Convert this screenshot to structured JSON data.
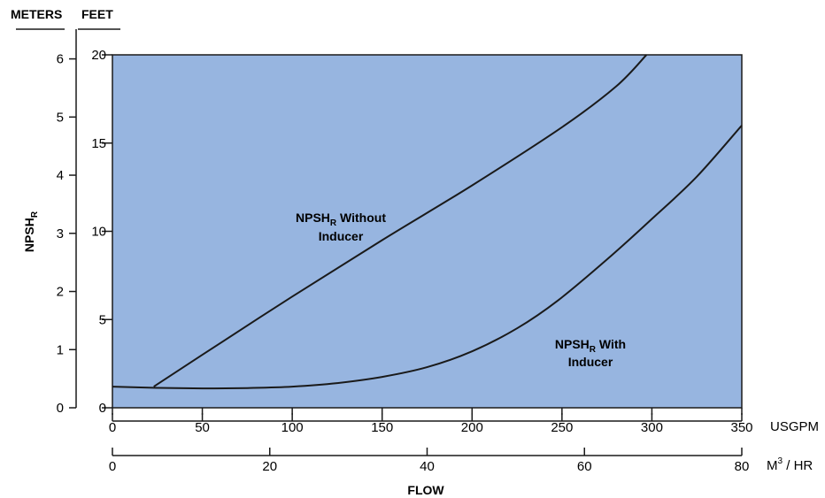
{
  "chart_data": {
    "type": "line",
    "plot_background_color": "#97b5e0",
    "line_color": "#1a1a1a",
    "left_axis": {
      "header": "METERS",
      "title": "NPSH",
      "title_subscript": "R",
      "range": [
        0,
        6.1
      ],
      "ticks": [
        0,
        1,
        2,
        3,
        4,
        5,
        6
      ]
    },
    "right_axis": {
      "header": "FEET",
      "range": [
        0,
        20
      ],
      "ticks": [
        0,
        5,
        10,
        15,
        20
      ]
    },
    "x_axis": {
      "unit": "USGPM",
      "range": [
        0,
        350
      ],
      "ticks": [
        0,
        50,
        100,
        150,
        200,
        250,
        300,
        350
      ]
    },
    "x_axis_secondary": {
      "unit_main": "M",
      "unit_sup": "3",
      "unit_rest": " / HR",
      "range": [
        0,
        80
      ],
      "ticks": [
        0,
        20,
        40,
        60,
        80
      ]
    },
    "x_title": "FLOW",
    "series": [
      {
        "name_main": "NPSH",
        "name_sub": "R",
        "name_rest": " Without",
        "name_line2": "Inducer",
        "unit": "feet",
        "x": [
          23,
          50,
          100,
          150,
          200,
          250,
          280,
          297
        ],
        "y": [
          1.2,
          3.0,
          6.3,
          9.5,
          12.6,
          15.9,
          18.2,
          20.0
        ]
      },
      {
        "name_main": "NPSH",
        "name_sub": "R",
        "name_rest": " With",
        "name_line2": "Inducer",
        "unit": "feet",
        "x": [
          0,
          25,
          50,
          75,
          100,
          125,
          150,
          175,
          200,
          225,
          248,
          275,
          300,
          325,
          350
        ],
        "y": [
          1.2,
          1.13,
          1.1,
          1.12,
          1.2,
          1.4,
          1.75,
          2.3,
          3.2,
          4.5,
          6.1,
          8.4,
          10.7,
          13.1,
          16.0
        ]
      }
    ]
  }
}
